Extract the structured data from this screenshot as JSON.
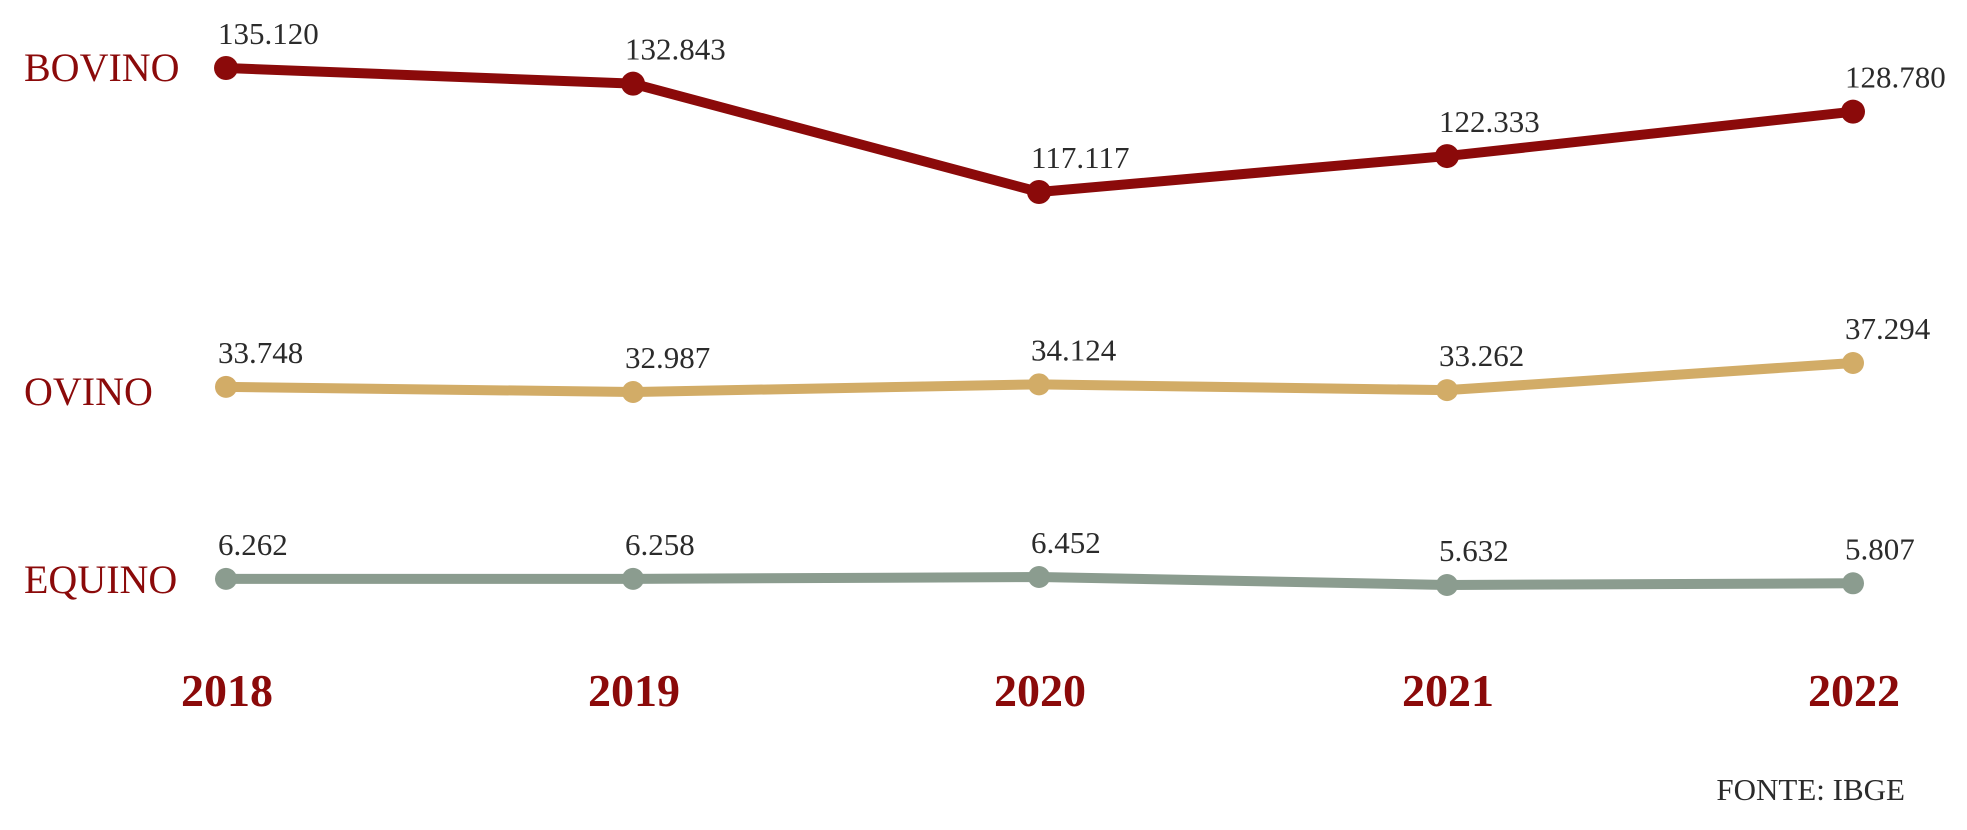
{
  "chart_data": {
    "type": "line",
    "categories": [
      "2018",
      "2019",
      "2020",
      "2021",
      "2022"
    ],
    "series": [
      {
        "name": "BOVINO",
        "color": "#8b0a0a",
        "values": [
          135120,
          132843,
          117117,
          122333,
          128780
        ],
        "labels": [
          "135.120",
          "132.843",
          "117.117",
          "122.333",
          "128.780"
        ]
      },
      {
        "name": "OVINO",
        "color": "#d2ac67",
        "values": [
          33748,
          32987,
          34124,
          33262,
          37294
        ],
        "labels": [
          "33.748",
          "32.987",
          "34.124",
          "33.262",
          "37.294"
        ]
      },
      {
        "name": "EQUINO",
        "color": "#8b9c8f",
        "values": [
          6262,
          6258,
          6452,
          5632,
          5807
        ],
        "labels": [
          "6.262",
          "6.258",
          "6.452",
          "5.632",
          "5.807"
        ]
      }
    ],
    "label_color": "#8b0a0a",
    "legend": "left",
    "grid": false,
    "source": "FONTE: IBGE"
  }
}
